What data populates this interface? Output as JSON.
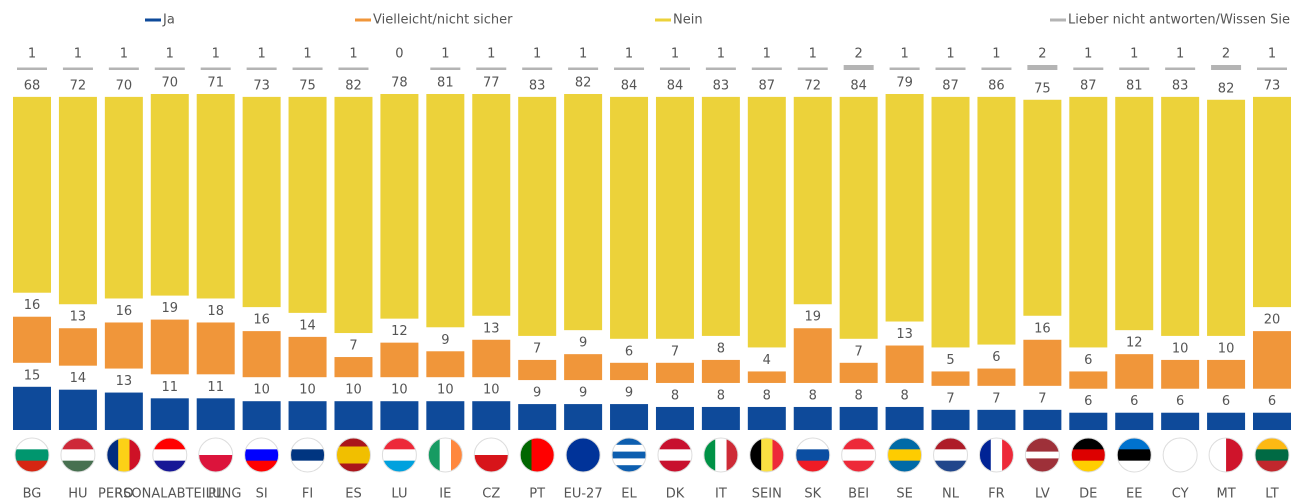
{
  "chart_data": {
    "type": "stacked-bar",
    "categories": [
      "BG",
      "HU",
      "RO",
      "PERSONALABTEILUNG",
      "PL",
      "SI",
      "FI",
      "ES",
      "LU",
      "IE",
      "CZ",
      "PT",
      "EU-27",
      "EL",
      "DK",
      "IT",
      "SEIN",
      "SK",
      "BEI",
      "SE",
      "NL",
      "FR",
      "LV",
      "DE",
      "EE",
      "CY",
      "MT",
      "LT"
    ],
    "series": [
      {
        "name": "Ja",
        "color": "#0e4a9a",
        "values": [
          15,
          14,
          13,
          11,
          11,
          10,
          10,
          10,
          10,
          10,
          10,
          9,
          9,
          9,
          8,
          8,
          8,
          8,
          8,
          8,
          7,
          7,
          7,
          6,
          6,
          6,
          6,
          6
        ]
      },
      {
        "name": "Vielleicht/nicht sicher",
        "color": "#f0963a",
        "values": [
          16,
          13,
          16,
          19,
          18,
          16,
          14,
          7,
          12,
          9,
          13,
          7,
          9,
          6,
          7,
          8,
          4,
          19,
          7,
          13,
          5,
          6,
          16,
          6,
          12,
          10,
          10,
          20
        ]
      },
      {
        "name": "Nein",
        "color": "#ecd23a",
        "values": [
          68,
          72,
          70,
          70,
          71,
          73,
          75,
          82,
          78,
          81,
          77,
          83,
          82,
          84,
          84,
          83,
          87,
          72,
          84,
          79,
          87,
          86,
          75,
          87,
          81,
          83,
          82,
          73
        ]
      },
      {
        "name": "Lieber nicht antworten/Wissen Sie nicht",
        "color": "#b4b4b4",
        "values": [
          1,
          1,
          1,
          1,
          1,
          1,
          1,
          1,
          0,
          1,
          1,
          1,
          1,
          1,
          1,
          1,
          1,
          1,
          2,
          1,
          1,
          1,
          2,
          1,
          1,
          1,
          2,
          1
        ]
      }
    ]
  }
}
